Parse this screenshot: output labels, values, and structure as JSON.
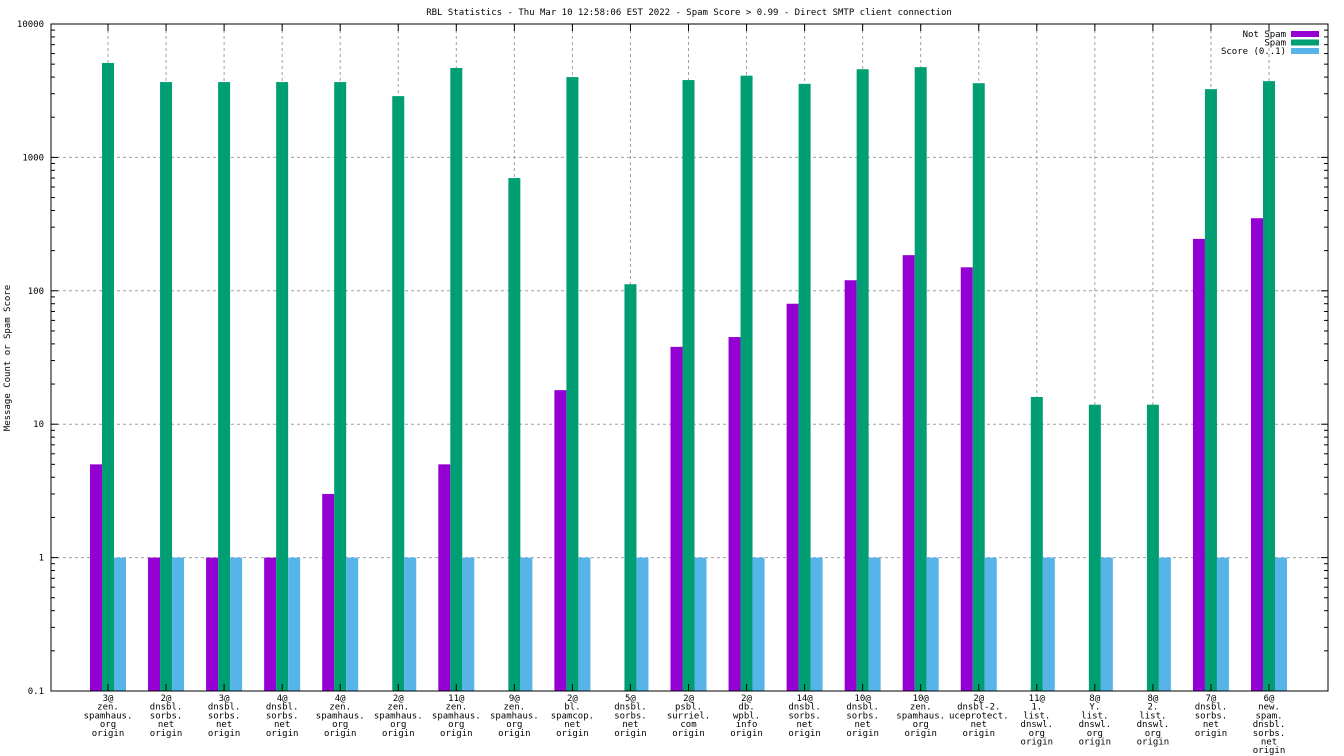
{
  "chart_data": {
    "type": "bar",
    "title": "RBL Statistics - Thu Mar 10 12:58:06 EST 2022 - Spam Score > 0.99 - Direct SMTP client connection",
    "xlabel": "",
    "ylabel": "Message Count or Spam Score",
    "yscale": "log",
    "ylim": [
      0.1,
      10000
    ],
    "yticks": [
      "0.1",
      "1",
      "10",
      "100",
      "1000",
      "10000"
    ],
    "grid": true,
    "legend_position": "top-right",
    "categories": [
      [
        "3@",
        "zen.",
        "spamhaus.",
        "org",
        "origin"
      ],
      [
        "2@",
        "dnsbl.",
        "sorbs.",
        "net",
        "origin"
      ],
      [
        "3@",
        "dnsbl.",
        "sorbs.",
        "net",
        "origin"
      ],
      [
        "4@",
        "dnsbl.",
        "sorbs.",
        "net",
        "origin"
      ],
      [
        "4@",
        "zen.",
        "spamhaus.",
        "org",
        "origin"
      ],
      [
        "2@",
        "zen.",
        "spamhaus.",
        "org",
        "origin"
      ],
      [
        "11@",
        "zen.",
        "spamhaus.",
        "org",
        "origin"
      ],
      [
        "9@",
        "zen.",
        "spamhaus.",
        "org",
        "origin"
      ],
      [
        "2@",
        "bl.",
        "spamcop.",
        "net",
        "origin"
      ],
      [
        "5@",
        "dnsbl.",
        "sorbs.",
        "net",
        "origin"
      ],
      [
        "2@",
        "psbl.",
        "surriel.",
        "com",
        "origin"
      ],
      [
        "2@",
        "db.",
        "wpbl.",
        "info",
        "origin"
      ],
      [
        "14@",
        "dnsbl.",
        "sorbs.",
        "net",
        "origin"
      ],
      [
        "10@",
        "dnsbl.",
        "sorbs.",
        "net",
        "origin"
      ],
      [
        "10@",
        "zen.",
        "spamhaus.",
        "org",
        "origin"
      ],
      [
        "2@",
        "dnsbl-2.",
        "uceprotect.",
        "net",
        "origin"
      ],
      [
        "11@",
        "1.",
        "list.",
        "dnswl.",
        "org",
        "origin"
      ],
      [
        "8@",
        "Y.",
        "list.",
        "dnswl.",
        "org",
        "origin"
      ],
      [
        "8@",
        "2.",
        "list.",
        "dnswl.",
        "org",
        "origin"
      ],
      [
        "7@",
        "dnsbl.",
        "sorbs.",
        "net",
        "origin"
      ],
      [
        "6@",
        "new.",
        "spam.",
        "dnsbl.",
        "sorbs.",
        "net",
        "origin"
      ]
    ],
    "series": [
      {
        "name": "Not Spam",
        "color": "#9400d3",
        "values": [
          5,
          1,
          1,
          1,
          3,
          null,
          5,
          null,
          18,
          null,
          38,
          45,
          80,
          120,
          185,
          150,
          null,
          null,
          null,
          245,
          350
        ]
      },
      {
        "name": "Spam",
        "color": "#009e73",
        "values": [
          5100,
          3670,
          3670,
          3670,
          3670,
          2880,
          4680,
          700,
          4000,
          112,
          3800,
          4100,
          3560,
          4580,
          4750,
          3600,
          16,
          14,
          14,
          3250,
          3730
        ]
      },
      {
        "name": "Score (0..1)",
        "color": "#56b4e9",
        "values": [
          1,
          1,
          1,
          1,
          1,
          1,
          1,
          1,
          1,
          1,
          1,
          1,
          1,
          1,
          1,
          1,
          1,
          1,
          1,
          1,
          1
        ]
      }
    ]
  }
}
